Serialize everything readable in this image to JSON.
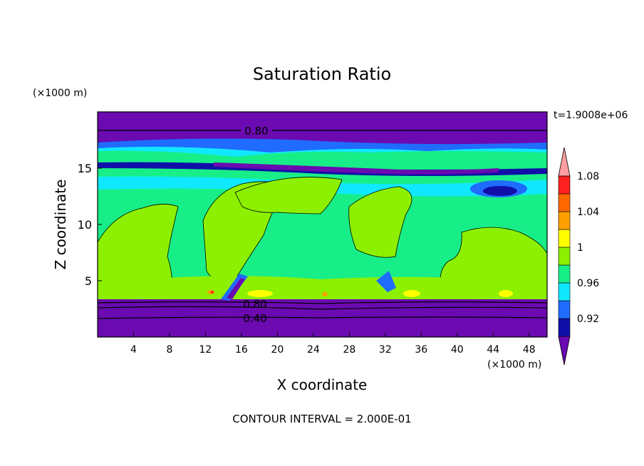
{
  "chart_data": {
    "type": "heatmap",
    "title": "Saturation Ratio",
    "xlabel": "X coordinate",
    "ylabel": "Z coordinate",
    "x_units": "(×1000 m)",
    "z_units": "(×1000 m)",
    "time_label": "t=1.9008e+06",
    "footer": "CONTOUR INTERVAL = 2.000E-01",
    "xlim": [
      0,
      50
    ],
    "ylim": [
      0,
      20
    ],
    "x_ticks": [
      "4",
      "8",
      "12",
      "16",
      "20",
      "24",
      "28",
      "32",
      "36",
      "40",
      "44",
      "48"
    ],
    "y_ticks": [
      "5",
      "10",
      "15"
    ],
    "contour_labels": [
      "0.80",
      "0.80",
      "0.40"
    ],
    "colorbar": {
      "labels": [
        "0.92",
        "0.96",
        "1",
        "1.04",
        "1.08"
      ],
      "colors": [
        "#6a0ab0",
        "#1010a8",
        "#1f6cff",
        "#10e8ff",
        "#18ee88",
        "#8cf000",
        "#ffff00",
        "#ffa000",
        "#ff6a00",
        "#ff2020",
        "#ff9ea0"
      ]
    }
  }
}
